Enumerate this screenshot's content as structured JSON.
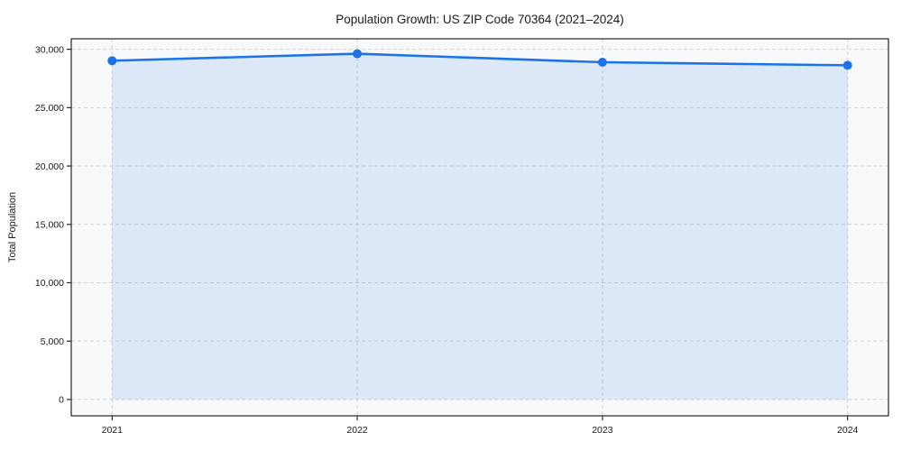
{
  "chart_data": {
    "type": "line",
    "title": "Population Growth: US ZIP Code 70364 (2021–2024)",
    "xlabel": "",
    "ylabel": "Total Population",
    "categories": [
      "2021",
      "2022",
      "2023",
      "2024"
    ],
    "series": [
      {
        "name": "Total Population",
        "values": [
          29020,
          29620,
          28890,
          28630
        ]
      }
    ],
    "area_fill": true,
    "area_baseline": 0,
    "y_ticks": [
      0,
      5000,
      10000,
      15000,
      20000,
      25000,
      30000
    ],
    "y_tick_labels": [
      "0",
      "5,000",
      "10,000",
      "15,000",
      "20,000",
      "25,000",
      "30,000"
    ],
    "ylim": [
      -1400,
      30900
    ],
    "grid": "both-dashed",
    "legend": "none",
    "colors": {
      "line": "#1a73e8",
      "marker": "#1a73e8",
      "fill": "rgba(26,115,232,0.12)",
      "grid": "#d3d3d3",
      "spine": "#262626",
      "tick": "#262626",
      "text": "#1a1a1a",
      "plot_bg": "#f8f9fa",
      "figure_bg": "#ffffff"
    }
  }
}
